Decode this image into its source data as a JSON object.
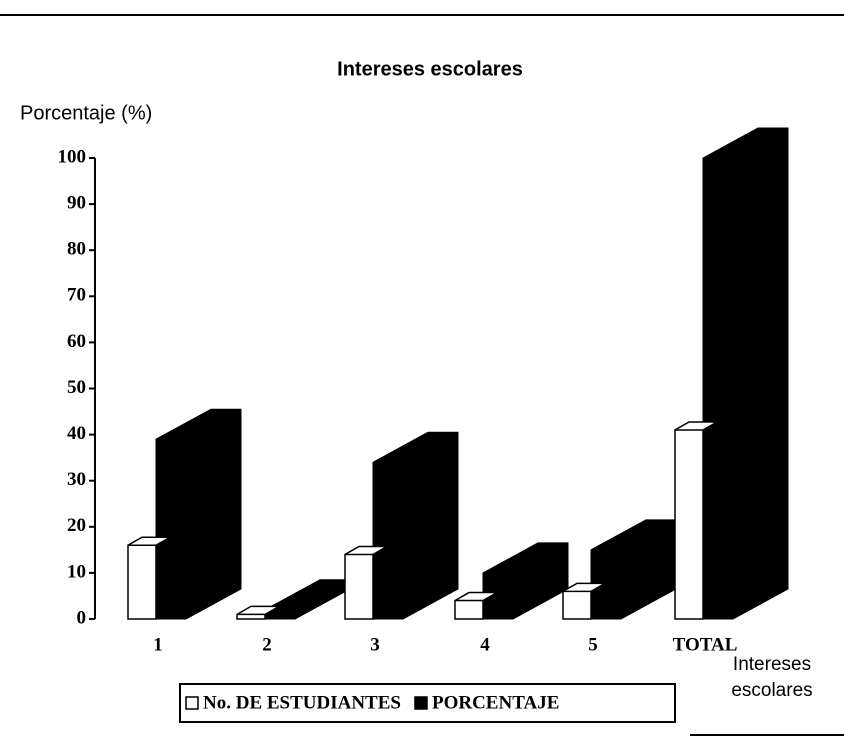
{
  "chart_data": {
    "type": "bar3d",
    "title": "Intereses escolares",
    "ylabel": "Porcentaje (%)",
    "xlabel": "Intereses escolares",
    "categories": [
      "1",
      "2",
      "3",
      "4",
      "5",
      "TOTAL"
    ],
    "series": [
      {
        "name": "No. DE ESTUDIANTES",
        "color": "#ffffff",
        "values": [
          16,
          1,
          14,
          4,
          6,
          41
        ]
      },
      {
        "name": "PORCENTAJE",
        "color": "#000000",
        "values": [
          39,
          2,
          34,
          10,
          15,
          100
        ]
      }
    ],
    "ylim": [
      0,
      100
    ],
    "yticks": [
      0,
      10,
      20,
      30,
      40,
      50,
      60,
      70,
      80,
      90,
      100
    ]
  }
}
